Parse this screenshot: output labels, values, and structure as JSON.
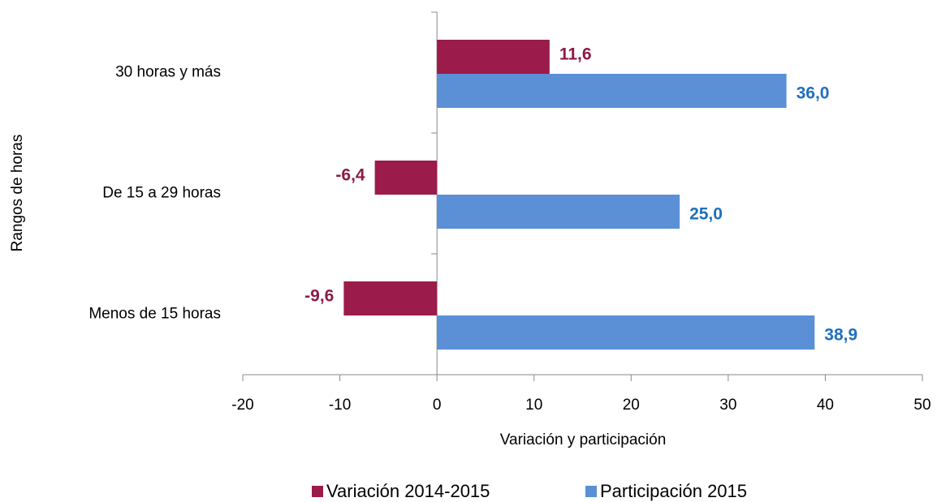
{
  "chart_data": {
    "type": "bar",
    "orientation": "horizontal",
    "categories": [
      "30 horas y más",
      "De 15 a 29 horas",
      "Menos de 15 horas"
    ],
    "series": [
      {
        "name": "Variación 2014-2015",
        "color": "#9b1b4a",
        "label_color": "#8b1a47",
        "values": [
          11.6,
          -6.4,
          -9.6
        ],
        "value_labels": [
          "11,6",
          "-6,4",
          "-9,6"
        ]
      },
      {
        "name": "Participación 2015",
        "color": "#5b8fd6",
        "label_color": "#1f6fbf",
        "values": [
          36.0,
          25.0,
          38.9
        ],
        "value_labels": [
          "36,0",
          "25,0",
          "38,9"
        ]
      }
    ],
    "xlim": [
      -20,
      50
    ],
    "xticks": [
      -20,
      -10,
      0,
      10,
      20,
      30,
      40,
      50
    ],
    "xlabel": "Variación y participación",
    "ylabel": "Rangos de horas",
    "legend": "bottom",
    "grid": false
  }
}
